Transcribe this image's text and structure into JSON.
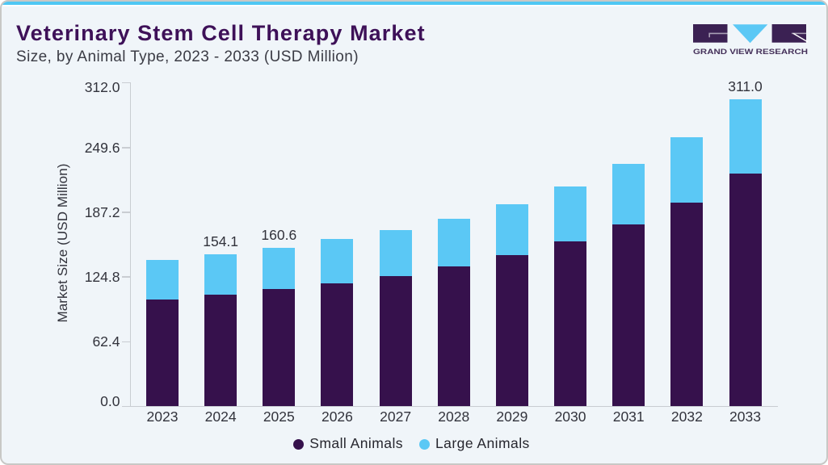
{
  "header": {
    "title": "Veterinary Stem Cell Therapy Market",
    "subtitle": "Size, by Animal Type, 2023 - 2033 (USD Million)",
    "brand": "GRAND VIEW RESEARCH"
  },
  "chart_data": {
    "type": "bar",
    "stacked": true,
    "title": "Veterinary Stem Cell Therapy Market Size, by Animal Type, 2023 - 2033 (USD Million)",
    "categories": [
      "2023",
      "2024",
      "2025",
      "2026",
      "2027",
      "2028",
      "2029",
      "2030",
      "2031",
      "2032",
      "2033"
    ],
    "series": [
      {
        "name": "Small Animals",
        "color": "#36114c",
        "values": [
          108.1,
          113.4,
          118.5,
          124.8,
          132.3,
          141.9,
          153.1,
          167.4,
          184.3,
          206.4,
          235.9
        ]
      },
      {
        "name": "Large Animals",
        "color": "#5bc8f5",
        "values": [
          40.6,
          40.7,
          42.1,
          44.8,
          46.2,
          48.6,
          52.0,
          55.5,
          61.3,
          66.7,
          75.1
        ]
      }
    ],
    "bar_total_labels": [
      {
        "category": "2024",
        "text": "154.1"
      },
      {
        "category": "2025",
        "text": "160.6"
      },
      {
        "category": "2033",
        "text": "311.0"
      }
    ],
    "ylabel": "Market Size (USD Million)",
    "yticks": [
      "0.0",
      "62.4",
      "124.8",
      "187.2",
      "249.6",
      "312.0"
    ],
    "ylim": [
      0,
      312
    ],
    "grid": false,
    "legend_position": "bottom"
  },
  "colors": {
    "background": "#f0f5f9",
    "accent_strip": "#4fc7f3",
    "border": "#c8c8c6",
    "axis": "#c9cdd2",
    "text": "#32333c",
    "title": "#3e1158",
    "small_animals": "#36114c",
    "large_animals": "#5bc8f5",
    "logo_block": "#3b2153"
  }
}
